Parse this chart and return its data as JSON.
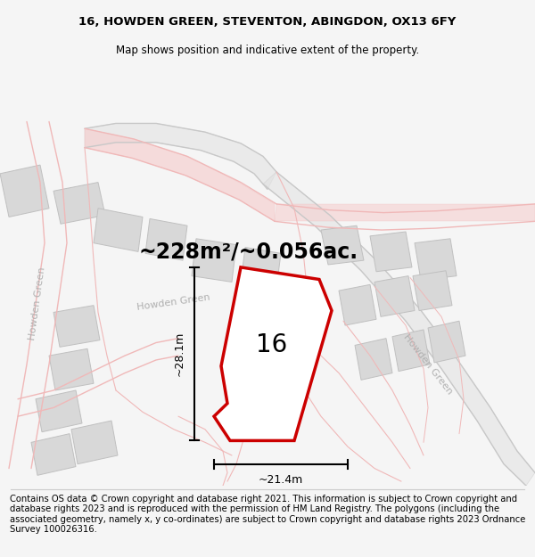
{
  "title_line1": "16, HOWDEN GREEN, STEVENTON, ABINGDON, OX13 6FY",
  "title_line2": "Map shows position and indicative extent of the property.",
  "footer_text": "Contains OS data © Crown copyright and database right 2021. This information is subject to Crown copyright and database rights 2023 and is reproduced with the permission of HM Land Registry. The polygons (including the associated geometry, namely x, y co-ordinates) are subject to Crown copyright and database rights 2023 Ordnance Survey 100026316.",
  "area_label": "~228m²/~0.056ac.",
  "number_label": "16",
  "dim_horizontal": "~21.4m",
  "dim_vertical": "~28.1m",
  "bg_color": "#f5f5f5",
  "road_pink": "#f0b8b8",
  "road_pink_light": "#f5d0d0",
  "road_gray": "#c8c8c8",
  "road_gray_light": "#e0e0e0",
  "building_fill": "#d8d8d8",
  "building_edge": "#c0c0c0",
  "prop_color": "#cc0000",
  "road_label_color": "#b0b0b0",
  "dim_color": "#000000",
  "title_fontsize": 9.5,
  "subtitle_fontsize": 8.5,
  "area_fontsize": 17,
  "num_fontsize": 20,
  "road_label_fontsize": 8,
  "dim_fontsize": 9,
  "footer_fontsize": 7.2
}
